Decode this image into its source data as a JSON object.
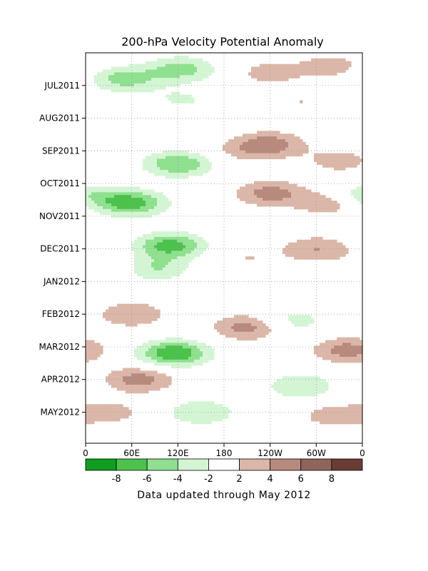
{
  "chart_data": {
    "type": "heatmap",
    "title": "200-hPa Velocity Potential Anomaly",
    "footnote": "Data updated through May 2012",
    "xlabel": "",
    "ylabel": "",
    "x_ticks": [
      "0",
      "60E",
      "120E",
      "180",
      "120W",
      "60W",
      "0"
    ],
    "x_tick_lon": [
      0,
      60,
      120,
      180,
      240,
      300,
      360
    ],
    "y_ticks": [
      "JUL2011",
      "AUG2011",
      "SEP2011",
      "OCT2011",
      "NOV2011",
      "DEC2011",
      "JAN2012",
      "FEB2012",
      "MAR2012",
      "APR2012",
      "MAY2012"
    ],
    "y_tick_month": [
      1,
      2,
      3,
      4,
      5,
      6,
      7,
      8,
      9,
      10,
      11
    ],
    "xlim": [
      0,
      360
    ],
    "ylim": [
      0.0,
      11.95
    ],
    "contour_interval": 1,
    "zero_contour_label": "0",
    "grid": "dotted",
    "colorbar": {
      "labels": [
        "-8",
        "-6",
        "-4",
        "-2",
        "2",
        "4",
        "6",
        "8"
      ],
      "colors": [
        "#0f9e1e",
        "#4cc24c",
        "#8fe08f",
        "#d4f5d4",
        "#ffffff",
        "#dbb7a9",
        "#b88a7e",
        "#8f645a",
        "#6b3c34"
      ]
    },
    "anomaly_features": [
      {
        "lon": 50,
        "month": 0.8,
        "value": -5
      },
      {
        "lon": 125,
        "month": 0.5,
        "value": -5
      },
      {
        "lon": 120,
        "month": 1.5,
        "value": -3
      },
      {
        "lon": 240,
        "month": 0.6,
        "value": 3
      },
      {
        "lon": 320,
        "month": 0.4,
        "value": 3
      },
      {
        "lon": 95,
        "month": 1.8,
        "value": 2
      },
      {
        "lon": 280,
        "month": 1.5,
        "value": 2
      },
      {
        "lon": 30,
        "month": 2.3,
        "value": -2
      },
      {
        "lon": 120,
        "month": 3.4,
        "value": -6
      },
      {
        "lon": 240,
        "month": 2.8,
        "value": 5
      },
      {
        "lon": 200,
        "month": 3.0,
        "value": 2
      },
      {
        "lon": 330,
        "month": 3.3,
        "value": 3
      },
      {
        "lon": 60,
        "month": 4.6,
        "value": -7
      },
      {
        "lon": 0,
        "month": 4.4,
        "value": -4
      },
      {
        "lon": 240,
        "month": 4.3,
        "value": 5
      },
      {
        "lon": 320,
        "month": 4.6,
        "value": 4
      },
      {
        "lon": 110,
        "month": 5.9,
        "value": -7
      },
      {
        "lon": 90,
        "month": 6.6,
        "value": -4
      },
      {
        "lon": 20,
        "month": 6.5,
        "value": 2
      },
      {
        "lon": 300,
        "month": 6.0,
        "value": 4
      },
      {
        "lon": 210,
        "month": 6.3,
        "value": 2
      },
      {
        "lon": 60,
        "month": 8.0,
        "value": 4
      },
      {
        "lon": 210,
        "month": 8.4,
        "value": 5
      },
      {
        "lon": 270,
        "month": 8.2,
        "value": -3
      },
      {
        "lon": 115,
        "month": 9.2,
        "value": -8
      },
      {
        "lon": 340,
        "month": 9.1,
        "value": 5
      },
      {
        "lon": 70,
        "month": 10.0,
        "value": 5
      },
      {
        "lon": 280,
        "month": 10.2,
        "value": -4
      },
      {
        "lon": 150,
        "month": 11.0,
        "value": -4
      },
      {
        "lon": 320,
        "month": 11.1,
        "value": 3
      },
      {
        "lon": 30,
        "month": 11.0,
        "value": 3
      }
    ]
  }
}
